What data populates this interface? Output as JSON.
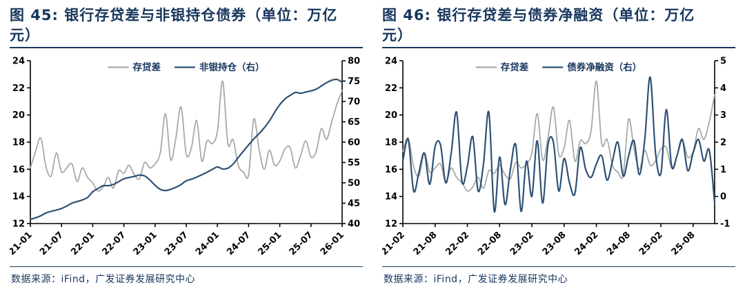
{
  "colors": {
    "title_text": "#17365d",
    "source_text": "#17365d",
    "axis": "#000000",
    "gray_series": "#a8a8a8",
    "blue_series": "#2e5074",
    "rule": "#17365d"
  },
  "figures": [
    {
      "title": "图 45: 银行存贷差与非银持仓债券（单位：万亿元）",
      "source": "数据来源：iFind，广发证券发展研究中心"
    },
    {
      "title": "图 46: 银行存贷差与债券净融资（单位：万亿元）",
      "source": "数据来源：iFind，广发证券发展研究中心"
    }
  ],
  "chart_data": [
    {
      "type": "line",
      "title": "银行存贷差与非银持仓债券（单位：万亿元）",
      "x_tick_labels": [
        "21-01",
        "21-07",
        "22-01",
        "22-07",
        "23-01",
        "23-07",
        "24-01",
        "24-07",
        "25-01",
        "25-07",
        "26-01"
      ],
      "x_tick_interval": 6,
      "left_axis": {
        "min": 12,
        "max": 24,
        "step": 2
      },
      "right_axis": {
        "min": 40,
        "max": 80,
        "step": 5
      },
      "legend_position": "top-center",
      "grid": false,
      "series": [
        {
          "name": "存贷差",
          "axis": "left",
          "color": "#a8a8a8",
          "values": [
            16.1,
            17.3,
            18.3,
            16.2,
            15.5,
            17.2,
            15.8,
            16.1,
            16.4,
            15.1,
            16.1,
            15.4,
            15.0,
            14.4,
            14.7,
            15.4,
            14.6,
            15.9,
            15.7,
            16.3,
            15.6,
            15.3,
            16.5,
            16.1,
            16.4,
            17.2,
            20.1,
            16.7,
            18.3,
            20.6,
            17.1,
            17.6,
            19.6,
            16.6,
            18.1,
            17.9,
            18.8,
            22.5,
            17.9,
            18.2,
            16.3,
            15.8,
            15.6,
            19.7,
            17.5,
            16.0,
            17.4,
            16.3,
            16.6,
            17.5,
            17.6,
            16.1,
            17.0,
            18.1,
            16.9,
            17.3,
            19.0,
            18.2,
            19.5,
            20.8,
            21.8
          ]
        },
        {
          "name": "非银持仓（右）",
          "axis": "right",
          "color": "#2e5074",
          "values": [
            41.0,
            41.4,
            41.9,
            42.6,
            43.0,
            43.3,
            43.7,
            44.3,
            45.0,
            45.4,
            45.8,
            46.4,
            47.8,
            48.6,
            49.3,
            49.3,
            49.6,
            50.3,
            51.0,
            51.3,
            51.6,
            51.9,
            51.7,
            50.7,
            49.4,
            48.4,
            48.1,
            48.4,
            48.9,
            49.6,
            50.5,
            50.9,
            51.4,
            52.0,
            52.6,
            53.3,
            53.9,
            53.4,
            53.6,
            54.6,
            56.2,
            57.8,
            59.3,
            60.8,
            62.1,
            63.5,
            65.2,
            67.3,
            69.2,
            70.6,
            71.5,
            72.2,
            72.0,
            72.3,
            72.6,
            73.0,
            73.8,
            74.6,
            75.2,
            75.4,
            74.7
          ]
        }
      ]
    },
    {
      "type": "line",
      "title": "银行存贷差与债券净融资（单位：万亿元）",
      "x_tick_labels": [
        "21-02",
        "21-08",
        "22-02",
        "22-08",
        "23-02",
        "23-08",
        "24-02",
        "24-08",
        "25-02",
        "25-08"
      ],
      "x_tick_interval": 6,
      "left_axis": {
        "min": 12,
        "max": 24,
        "step": 2
      },
      "right_axis": {
        "min": -1,
        "max": 5,
        "step": 1
      },
      "legend_position": "top-center",
      "grid": false,
      "series": [
        {
          "name": "存贷差",
          "axis": "left",
          "color": "#a8a8a8",
          "values": [
            17.3,
            18.3,
            16.2,
            15.5,
            17.2,
            15.8,
            16.1,
            16.4,
            15.1,
            16.1,
            15.4,
            15.0,
            14.4,
            14.7,
            15.4,
            14.6,
            15.9,
            15.7,
            16.3,
            15.6,
            15.3,
            16.5,
            16.1,
            16.4,
            17.2,
            20.1,
            16.7,
            18.3,
            20.6,
            17.1,
            17.6,
            19.6,
            16.6,
            18.1,
            17.9,
            18.8,
            22.5,
            17.9,
            18.2,
            16.3,
            15.8,
            15.6,
            19.7,
            17.5,
            16.0,
            17.4,
            16.3,
            16.6,
            17.5,
            17.6,
            16.1,
            17.0,
            18.1,
            16.9,
            17.3,
            19.0,
            18.2,
            19.5,
            21.5
          ]
        },
        {
          "name": "债券净融资（右）",
          "axis": "right",
          "color": "#2e5074",
          "values": [
            1.3,
            2.1,
            0.2,
            0.9,
            1.6,
            0.45,
            1.85,
            1.9,
            0.5,
            1.6,
            3.1,
            0.55,
            1.1,
            2.2,
            0.2,
            1.2,
            3.1,
            -0.55,
            1.45,
            -0.3,
            1.0,
            1.9,
            -0.55,
            1.3,
            0.0,
            2.05,
            -0.25,
            1.9,
            2.0,
            0.2,
            1.4,
            0.5,
            0.1,
            1.8,
            1.0,
            0.7,
            1.2,
            1.5,
            0.6,
            1.3,
            2.0,
            0.75,
            1.5,
            2.05,
            0.8,
            2.1,
            4.4,
            1.6,
            0.85,
            3.2,
            1.1,
            1.5,
            2.1,
            0.95,
            1.6,
            2.1,
            1.3,
            1.7,
            -0.25
          ]
        }
      ]
    }
  ]
}
